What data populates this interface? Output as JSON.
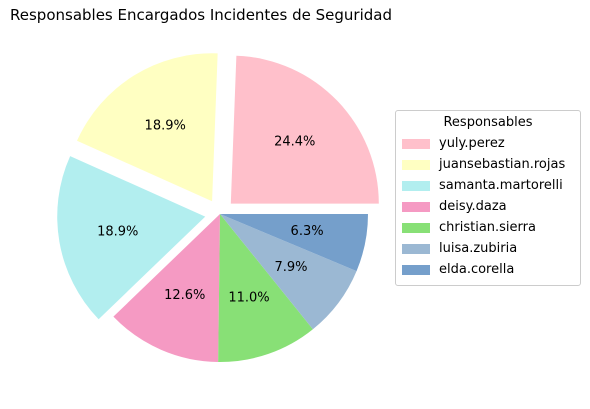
{
  "chart_data": {
    "type": "pie",
    "title": "Responsables Encargados Incidentes de Seguridad",
    "legend_title": "Responsables",
    "legend_position": "right",
    "slices": [
      {
        "label": "yuly.perez",
        "value": 24.4,
        "pct_label": "24.4%",
        "color": "#FFC0CB",
        "exploded": true
      },
      {
        "label": "juansebastian.rojas",
        "value": 18.9,
        "pct_label": "18.9%",
        "color": "#FFFFC2",
        "exploded": true
      },
      {
        "label": "samanta.martorelli",
        "value": 18.9,
        "pct_label": "18.9%",
        "color": "#B2EEEF",
        "exploded": true
      },
      {
        "label": "deisy.daza",
        "value": 12.6,
        "pct_label": "12.6%",
        "color": "#F59AC3",
        "exploded": false
      },
      {
        "label": "christian.sierra",
        "value": 11.0,
        "pct_label": "11.0%",
        "color": "#88E076",
        "exploded": false
      },
      {
        "label": "luisa.zubiria",
        "value": 7.9,
        "pct_label": "7.9%",
        "color": "#9BB8D3",
        "exploded": false
      },
      {
        "label": "elda.corella",
        "value": 6.3,
        "pct_label": "6.3%",
        "color": "#759FCB",
        "exploded": false
      }
    ]
  }
}
